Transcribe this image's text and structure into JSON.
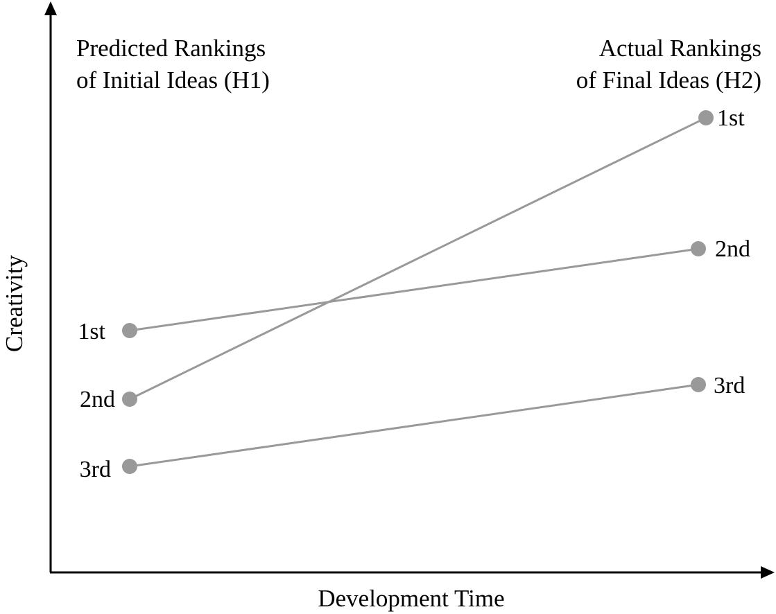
{
  "axes": {
    "x_label": "Development Time",
    "y_label": "Creativity"
  },
  "left_header": {
    "line1": "Predicted Rankings",
    "line2": "of Initial Ideas (H1)"
  },
  "right_header": {
    "line1": "Actual Rankings",
    "line2": "of Final Ideas (H2)"
  },
  "ideas": [
    {
      "initial_rank": "1st",
      "final_rank": "2nd"
    },
    {
      "initial_rank": "2nd",
      "final_rank": "1st"
    },
    {
      "initial_rank": "3rd",
      "final_rank": "3rd"
    }
  ],
  "colors": {
    "axis": "#000000",
    "line": "#999999",
    "marker": "#999999"
  }
}
